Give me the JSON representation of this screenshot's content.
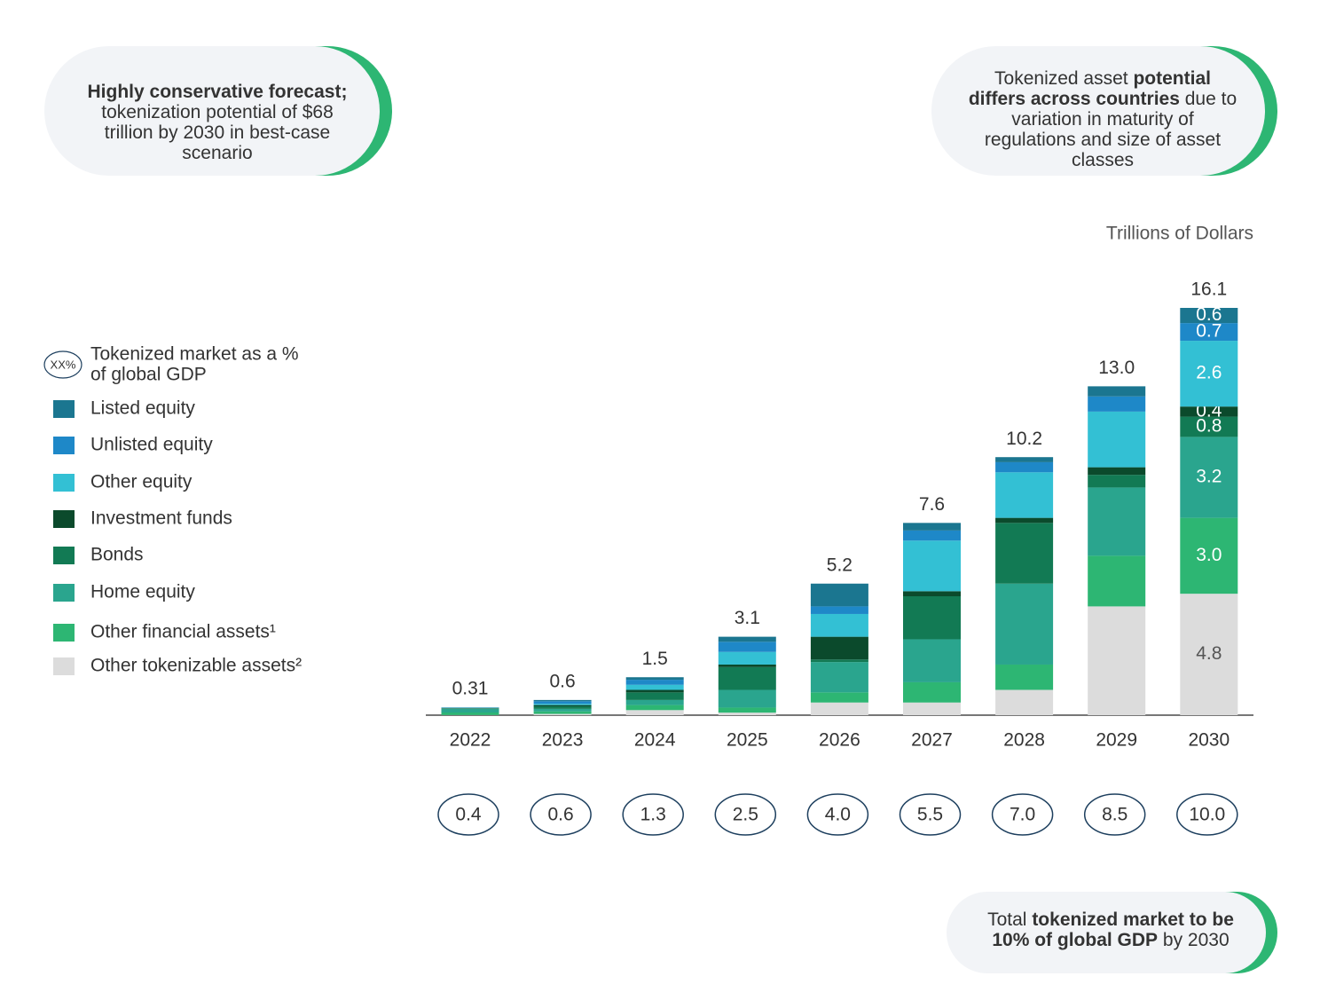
{
  "chart_data": {
    "type": "stacked-bar",
    "units_label": "Trillions of Dollars",
    "categories": [
      "2022",
      "2023",
      "2024",
      "2025",
      "2026",
      "2027",
      "2028",
      "2029",
      "2030"
    ],
    "ylim": [
      0,
      16.1
    ],
    "series": [
      {
        "name": "Listed equity",
        "color": "#1b7690",
        "values": [
          0.005,
          0.05,
          0.1,
          0.2,
          0.9,
          0.3,
          0.2,
          0.4,
          0.6
        ],
        "value_labels": [
          null,
          null,
          null,
          null,
          null,
          null,
          null,
          null,
          "0.6"
        ]
      },
      {
        "name": "Unlisted equity",
        "color": "#1e88c8",
        "values": [
          0.01,
          0.1,
          0.2,
          0.4,
          0.3,
          0.4,
          0.4,
          0.6,
          0.7
        ],
        "value_labels": [
          null,
          null,
          null,
          null,
          null,
          null,
          null,
          null,
          "0.7"
        ]
      },
      {
        "name": "Other equity",
        "color": "#33c0d4",
        "values": [
          0.01,
          0.05,
          0.2,
          0.5,
          0.9,
          2.0,
          1.8,
          2.2,
          2.6
        ],
        "value_labels": [
          null,
          null,
          null,
          null,
          null,
          null,
          null,
          null,
          "2.6"
        ]
      },
      {
        "name": "Investment funds",
        "color": "#0b4a2c",
        "values": [
          0.01,
          0.05,
          0.1,
          0.1,
          0.9,
          0.2,
          0.2,
          0.3,
          0.4
        ],
        "value_labels": [
          null,
          null,
          null,
          null,
          null,
          null,
          null,
          null,
          "0.4"
        ]
      },
      {
        "name": "Bonds",
        "color": "#127a54",
        "values": [
          0.02,
          0.1,
          0.3,
          0.9,
          0.1,
          1.7,
          2.4,
          0.5,
          0.8
        ],
        "value_labels": [
          null,
          null,
          null,
          null,
          null,
          null,
          null,
          null,
          "0.8"
        ]
      },
      {
        "name": "Home equity",
        "color": "#2aa58e",
        "values": [
          0.15,
          0.1,
          0.2,
          0.7,
          1.2,
          1.7,
          3.2,
          2.7,
          3.2
        ],
        "value_labels": [
          null,
          null,
          null,
          null,
          null,
          null,
          null,
          null,
          "3.2"
        ]
      },
      {
        "name": "Other financial assets¹",
        "color": "#2db673",
        "values": [
          0.1,
          0.1,
          0.2,
          0.2,
          0.4,
          0.8,
          1.0,
          2.0,
          3.0
        ],
        "value_labels": [
          null,
          null,
          null,
          null,
          null,
          null,
          null,
          null,
          "3.0"
        ]
      },
      {
        "name": "Other tokenizable assets²",
        "color": "#dcdcdc",
        "values": [
          0.005,
          0.05,
          0.2,
          0.1,
          0.5,
          0.5,
          1.0,
          4.3,
          4.8
        ],
        "value_labels": [
          null,
          null,
          null,
          null,
          null,
          null,
          null,
          null,
          "4.8"
        ]
      }
    ],
    "totals": [
      0.31,
      0.6,
      1.5,
      3.1,
      5.2,
      7.6,
      10.2,
      13.0,
      16.1
    ],
    "total_labels": [
      "0.31",
      "0.6",
      "1.5",
      "3.1",
      "5.2",
      "7.6",
      "10.2",
      "13.0",
      "16.1"
    ],
    "gdp_legend": {
      "symbol": "XX%",
      "lines": [
        "Tokenized market as a %",
        "of global GDP"
      ]
    },
    "gdp_values": [
      0.4,
      0.6,
      1.3,
      2.5,
      4.0,
      5.5,
      7.0,
      8.5,
      10.0
    ],
    "gdp_labels": [
      "0.4",
      "0.6",
      "1.3",
      "2.5",
      "4.0",
      "5.5",
      "7.0",
      "8.5",
      "10.0"
    ]
  },
  "callouts": [
    {
      "lines": [
        [
          {
            "text": "Highly conservative forecast;",
            "bold": true
          }
        ],
        [
          {
            "text": "tokenization potential of $68"
          }
        ],
        [
          {
            "text": "trillion by 2030 in best-case"
          }
        ],
        [
          {
            "text": "scenario"
          }
        ]
      ]
    },
    {
      "lines": [
        [
          {
            "text": "Tokenized asset "
          },
          {
            "text": "potential",
            "bold": true
          }
        ],
        [
          {
            "text": "differs across countries",
            "bold": true
          },
          {
            "text": " due to"
          }
        ],
        [
          {
            "text": "variation in maturity of"
          }
        ],
        [
          {
            "text": "regulations and size of asset"
          }
        ],
        [
          {
            "text": "classes"
          }
        ]
      ]
    },
    {
      "lines": [
        [
          {
            "text": "Total "
          },
          {
            "text": "tokenized market to be",
            "bold": true
          }
        ],
        [
          {
            "text": "10% of global GDP",
            "bold": true
          },
          {
            "text": " by 2030"
          }
        ]
      ]
    }
  ]
}
